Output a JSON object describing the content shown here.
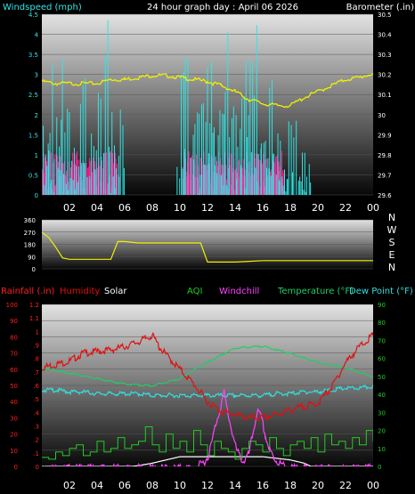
{
  "header": {
    "wind_label": "Windspeed (mph)",
    "title": "24 hour graph day : April 06 2026",
    "baro_label": "Barometer (.in)"
  },
  "labels": {
    "rainfall": "Rainfall (.in)",
    "humidity": "Humidity",
    "solar": "Solar",
    "aqi": "AQI",
    "windchill": "Windchill",
    "temperature": "Temperature (°F)",
    "dewpoint": "Dew Point (°F)"
  },
  "colors": {
    "wind": "#33e5e5",
    "gust": "#ff1f8f",
    "barometer": "#f0f000",
    "direction": "#f0f000",
    "humidity": "#e01010",
    "solar": "#ffffff",
    "aqi": "#22cc22",
    "windchill": "#ff44ff",
    "temperature": "#22cc66",
    "dewpoint": "#33dddd",
    "rain_axis": "#ff2020",
    "right_axis": "#22cc22"
  },
  "x_ticks": [
    "02",
    "04",
    "06",
    "08",
    "10",
    "12",
    "14",
    "16",
    "18",
    "20",
    "22",
    "00"
  ],
  "compass": [
    "N",
    "W",
    "S",
    "E",
    "N"
  ],
  "chart_data": [
    {
      "type": "bar",
      "name": "wind",
      "ylabel_left": "Windspeed (mph)",
      "ylabel_right": "Barometer (.in)",
      "x_range": [
        0,
        24
      ],
      "ylim_left": [
        0,
        4.5
      ],
      "yticks_left": [
        "0",
        "0.5",
        "1",
        "1.5",
        "2",
        "2.5",
        "3",
        "3.5",
        "4",
        "4.5"
      ],
      "ylim_right": [
        29.6,
        30.5
      ],
      "yticks_right": [
        "29.6",
        "29.7",
        "29.8",
        "29.9",
        "30",
        "30.1",
        "30.2",
        "30.3",
        "30.4",
        "30.5"
      ],
      "series": [
        {
          "name": "Windspeed (mph)",
          "segments": [
            [
              0.1,
              2.3
            ],
            [
              0.5,
              3.4
            ],
            [
              0.9,
              2.3
            ],
            [
              1.4,
              3.4
            ],
            [
              1.9,
              2.3
            ],
            [
              2.4,
              1.1
            ],
            [
              2.8,
              3.4
            ],
            [
              3.2,
              1.1
            ],
            [
              3.5,
              2.3
            ],
            [
              4.0,
              3.4
            ],
            [
              4.3,
              1.1
            ],
            [
              4.6,
              4.6
            ],
            [
              4.9,
              2.3
            ],
            [
              5.3,
              1.1
            ],
            [
              5.6,
              2.3
            ],
            [
              6.0,
              0.0
            ],
            [
              9.8,
              1.1
            ],
            [
              10.1,
              3.4
            ],
            [
              10.4,
              4.6
            ],
            [
              10.7,
              2.3
            ],
            [
              11.0,
              3.4
            ],
            [
              11.4,
              2.3
            ],
            [
              11.7,
              4.6
            ],
            [
              12.0,
              3.4
            ],
            [
              12.3,
              4.6
            ],
            [
              12.6,
              2.3
            ],
            [
              12.9,
              3.4
            ],
            [
              13.2,
              4.6
            ],
            [
              13.5,
              3.4
            ],
            [
              13.8,
              4.6
            ],
            [
              14.1,
              2.3
            ],
            [
              14.4,
              3.4
            ],
            [
              14.7,
              4.6
            ],
            [
              15.0,
              3.4
            ],
            [
              15.3,
              4.6
            ],
            [
              15.6,
              2.3
            ],
            [
              15.9,
              3.4
            ],
            [
              16.2,
              2.3
            ],
            [
              16.5,
              3.4
            ],
            [
              16.8,
              1.1
            ],
            [
              17.1,
              2.3
            ],
            [
              17.4,
              1.1
            ],
            [
              17.8,
              2.3
            ],
            [
              18.6,
              1.1
            ],
            [
              19.1,
              1.1
            ],
            [
              19.5,
              0.0
            ]
          ]
        },
        {
          "name": "Gust",
          "segments": [
            [
              0.0,
              1.1
            ],
            [
              1.2,
              1.1
            ],
            [
              2.5,
              1.1
            ],
            [
              3.5,
              1.1
            ],
            [
              4.5,
              1.1
            ],
            [
              5.5,
              0.0
            ],
            [
              10.2,
              1.1
            ],
            [
              11.2,
              1.1
            ],
            [
              12.0,
              1.1
            ],
            [
              12.8,
              1.1
            ],
            [
              13.6,
              1.1
            ],
            [
              14.4,
              1.1
            ],
            [
              15.2,
              1.1
            ],
            [
              16.0,
              1.1
            ],
            [
              16.8,
              1.1
            ],
            [
              17.6,
              0.0
            ]
          ]
        }
      ],
      "barometer": {
        "x": [
          0,
          1,
          2,
          3,
          4,
          5,
          6,
          7,
          8,
          9,
          10,
          11,
          12,
          13,
          14,
          15,
          16,
          17,
          18,
          19,
          20,
          21,
          22,
          23,
          24
        ],
        "y": [
          30.17,
          30.16,
          30.16,
          30.16,
          30.16,
          30.18,
          30.18,
          30.19,
          30.2,
          30.2,
          30.19,
          30.18,
          30.17,
          30.15,
          30.12,
          30.08,
          30.06,
          30.05,
          30.05,
          30.09,
          30.12,
          30.15,
          30.18,
          30.19,
          30.21
        ]
      }
    },
    {
      "type": "line",
      "name": "direction",
      "x_range": [
        0,
        24
      ],
      "ylim": [
        0,
        360
      ],
      "yticks": [
        "0",
        "90",
        "180",
        "270",
        "360"
      ],
      "x": [
        0.0,
        0.5,
        1.0,
        1.5,
        2.0,
        3.0,
        3.5,
        4.0,
        4.5,
        5.0,
        5.5,
        6.0,
        7.0,
        8.0,
        9.0,
        10.0,
        11.0,
        11.5,
        12.0,
        13.0,
        14.0,
        15.0,
        16.0,
        17.0,
        18.0,
        19.0,
        20.0,
        21.0,
        22.0,
        23.0,
        24.0
      ],
      "y": [
        270,
        230,
        160,
        80,
        70,
        70,
        70,
        70,
        70,
        70,
        200,
        200,
        190,
        190,
        190,
        190,
        190,
        190,
        50,
        50,
        50,
        55,
        60,
        60,
        60,
        60,
        60,
        60,
        60,
        60,
        60
      ]
    },
    {
      "type": "line",
      "name": "weather",
      "x_range": [
        0,
        24
      ],
      "ylim_left": [
        0,
        100
      ],
      "yticks_left": [
        "0",
        "10",
        "20",
        "30",
        "40",
        "50",
        "60",
        "70",
        "80",
        "90",
        "100"
      ],
      "rain_ticks": [
        "0",
        ".1",
        ".2",
        ".3",
        ".4",
        ".5",
        ".6",
        ".7",
        ".8",
        ".9",
        "1",
        "1.1",
        "1.2"
      ],
      "ylim_right": [
        0,
        90
      ],
      "yticks_right": [
        "0",
        "10",
        "20",
        "30",
        "40",
        "50",
        "60",
        "70",
        "80",
        "90"
      ],
      "series": [
        {
          "name": "Humidity",
          "axis": "left",
          "x": [
            0,
            1,
            2,
            3,
            4,
            5,
            6,
            7,
            7.5,
            8,
            8.5,
            9,
            10,
            11,
            12,
            13,
            14,
            15,
            16,
            17,
            18,
            19,
            20,
            21,
            22,
            23,
            24
          ],
          "y": [
            62,
            64,
            66,
            71,
            72,
            73,
            75,
            78,
            80,
            82,
            75,
            70,
            61,
            52,
            41,
            35,
            33,
            31,
            31,
            33,
            36,
            38,
            40,
            50,
            65,
            75,
            82
          ]
        },
        {
          "name": "Solar",
          "axis": "left",
          "x": [
            0,
            6.5,
            7,
            8,
            9,
            10,
            11,
            12,
            13,
            14,
            15,
            16,
            17,
            18,
            19,
            19.5,
            24
          ],
          "y": [
            0,
            0,
            0.5,
            2,
            4,
            6,
            6,
            6,
            6,
            6,
            6,
            6,
            5,
            4,
            2,
            0,
            0
          ]
        },
        {
          "name": "AQI",
          "axis": "right",
          "x": [
            0,
            0.5,
            1,
            1.5,
            2,
            2.5,
            3,
            3.5,
            4,
            4.5,
            5,
            5.5,
            6,
            6.5,
            7,
            7.5,
            8,
            8.5,
            9,
            9.5,
            10,
            10.5,
            11,
            11.5,
            12,
            12.5,
            13,
            13.5,
            14,
            14.5,
            15,
            15.5,
            16,
            16.5,
            17,
            17.5,
            18,
            18.5,
            19,
            19.5,
            20,
            20.5,
            21,
            21.5,
            22,
            22.5,
            23,
            23.5,
            24
          ],
          "y": [
            5,
            4,
            8,
            6,
            10,
            12,
            6,
            8,
            14,
            8,
            10,
            16,
            10,
            12,
            14,
            22,
            12,
            8,
            18,
            10,
            14,
            8,
            20,
            12,
            6,
            14,
            10,
            8,
            4,
            10,
            14,
            12,
            8,
            16,
            10,
            6,
            12,
            14,
            10,
            16,
            8,
            18,
            12,
            14,
            10,
            16,
            12,
            20,
            14
          ]
        },
        {
          "name": "Windchill",
          "axis": "right",
          "x": [
            0,
            11,
            11.5,
            12,
            12.3,
            12.6,
            12.9,
            13.2,
            13.5,
            13.8,
            14.1,
            14.6,
            15,
            15.3,
            15.6,
            15.9,
            16.2,
            16.5,
            16.8,
            17.2,
            17.6,
            18,
            24
          ],
          "y": [
            0,
            0,
            2,
            6,
            14,
            25,
            33,
            42,
            30,
            20,
            10,
            4,
            8,
            20,
            32,
            28,
            18,
            10,
            6,
            3,
            1,
            0,
            0
          ]
        },
        {
          "name": "Temperature (°F)",
          "axis": "right",
          "x": [
            0,
            2,
            4,
            6,
            8,
            10,
            12,
            14,
            16,
            18,
            20,
            22,
            24
          ],
          "y": [
            55,
            52,
            49,
            46,
            45,
            49,
            58,
            66,
            67,
            63,
            58,
            55,
            50
          ]
        },
        {
          "name": "Dew Point (°F)",
          "axis": "right",
          "x": [
            0,
            1,
            2,
            3,
            4,
            5,
            6,
            7,
            8,
            9,
            10,
            11,
            12,
            13,
            14,
            15,
            16,
            17,
            18,
            19,
            20,
            21,
            22,
            23,
            24
          ],
          "y": [
            43,
            43,
            42,
            42,
            41,
            41,
            41,
            41,
            40,
            40,
            40,
            40,
            40,
            40,
            40,
            40,
            40,
            41,
            41,
            42,
            42,
            43,
            44,
            44,
            45
          ]
        }
      ]
    }
  ]
}
